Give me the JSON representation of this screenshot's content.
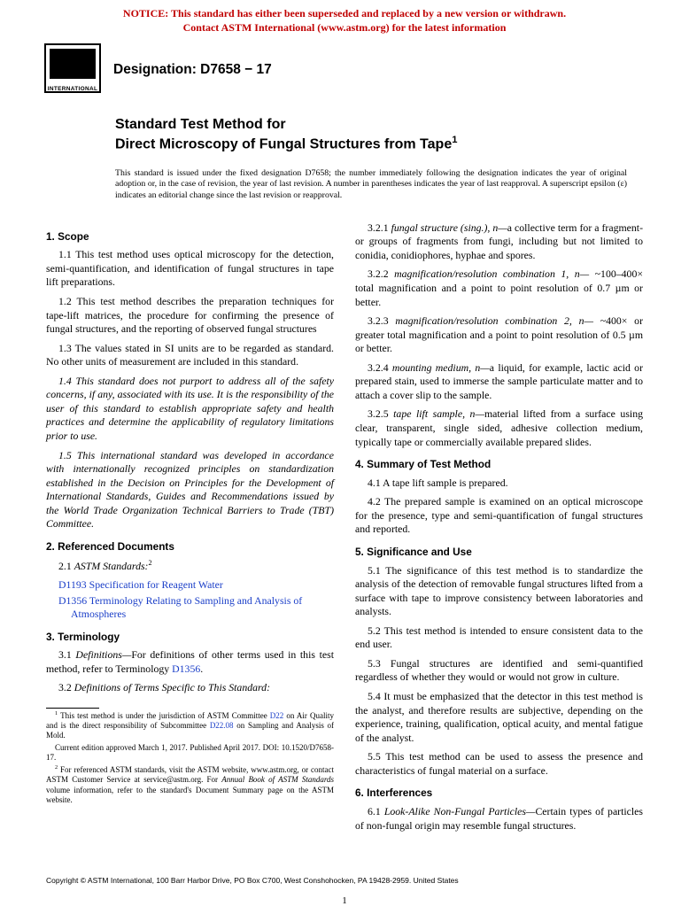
{
  "notice": {
    "line1": "NOTICE: This standard has either been superseded and replaced by a new version or withdrawn.",
    "line2": "Contact ASTM International (www.astm.org) for the latest information",
    "color": "#c00000"
  },
  "logo": {
    "label": "INTERNATIONAL"
  },
  "designation": {
    "prefix": "Designation: ",
    "code": "D7658 − 17"
  },
  "title": {
    "line1": "Standard Test Method for",
    "line2": "Direct Microscopy of Fungal Structures from Tape",
    "sup": "1"
  },
  "issuance": "This standard is issued under the fixed designation D7658; the number immediately following the designation indicates the year of original adoption or, in the case of revision, the year of last revision. A number in parentheses indicates the year of last reapproval. A superscript epsilon (ε) indicates an editorial change since the last revision or reapproval.",
  "s1": {
    "head": "1. Scope",
    "p1": "1.1 This test method uses optical microscopy for the detection, semi-quantification, and identification of fungal structures in tape lift preparations.",
    "p2": "1.2 This test method describes the preparation techniques for tape-lift matrices, the procedure for confirming the presence of fungal structures, and the reporting of observed fungal structures",
    "p3": "1.3 The values stated in SI units are to be regarded as standard. No other units of measurement are included in this standard.",
    "p4": "1.4 This standard does not purport to address all of the safety concerns, if any, associated with its use. It is the responsibility of the user of this standard to establish appropriate safety and health practices and determine the applicability of regulatory limitations prior to use.",
    "p5": "1.5 This international standard was developed in accordance with internationally recognized principles on standardization established in the Decision on Principles for the Development of International Standards, Guides and Recommendations issued by the World Trade Organization Technical Barriers to Trade (TBT) Committee."
  },
  "s2": {
    "head": "2. Referenced Documents",
    "p1_a": "2.1 ",
    "p1_b": "ASTM Standards:",
    "p1_sup": "2",
    "r1_code": "D1193",
    "r1_text": " Specification for Reagent Water",
    "r2_code": "D1356",
    "r2_text": " Terminology Relating to Sampling and Analysis of Atmospheres"
  },
  "s3": {
    "head": "3. Terminology",
    "p1_a": "3.1 ",
    "p1_b": "Definitions—",
    "p1_c": "For definitions of other terms used in this test method, refer to Terminology ",
    "p1_link": "D1356",
    "p1_d": ".",
    "p2_a": "3.2 ",
    "p2_b": "Definitions of Terms Specific to This Standard:",
    "d1_a": "3.2.1 ",
    "d1_b": "fungal structure (sing.), n—",
    "d1_c": "a collective term for a fragment- or groups of fragments from fungi, including but not limited to conidia, conidiophores, hyphae and spores.",
    "d2_a": "3.2.2 ",
    "d2_b": "magnification/resolution combination 1, n—",
    "d2_c": " ~100–400× total magnification and a point to point resolution of 0.7 µm or better.",
    "d3_a": "3.2.3 ",
    "d3_b": "magnification/resolution combination 2, n—",
    "d3_c": " ~400× or greater total magnification and a point to point resolution of 0.5 µm or better.",
    "d4_a": "3.2.4 ",
    "d4_b": "mounting medium, n—",
    "d4_c": "a liquid, for example, lactic acid or prepared stain, used to immerse the sample particulate matter and to attach a cover slip to the sample.",
    "d5_a": "3.2.5 ",
    "d5_b": "tape lift sample, n—",
    "d5_c": "material lifted from a surface using clear, transparent, single sided, adhesive collection medium, typically tape or commercially available prepared slides."
  },
  "s4": {
    "head": "4. Summary of Test Method",
    "p1": "4.1 A tape lift sample is prepared.",
    "p2": "4.2 The prepared sample is examined on an optical microscope for the presence, type and semi-quantification of fungal structures and reported."
  },
  "s5": {
    "head": "5. Significance and Use",
    "p1": "5.1 The significance of this test method is to standardize the analysis of the detection of removable fungal structures lifted from a surface with tape to improve consistency between laboratories and analysts.",
    "p2": "5.2 This test method is intended to ensure consistent data to the end user.",
    "p3": "5.3 Fungal structures are identified and semi-quantified regardless of whether they would or would not grow in culture.",
    "p4": "5.4 It must be emphasized that the detector in this test method is the analyst, and therefore results are subjective, depending on the experience, training, qualification, optical acuity, and mental fatigue of the analyst.",
    "p5": "5.5 This test method can be used to assess the presence and characteristics of fungal material on a surface."
  },
  "s6": {
    "head": "6. Interferences",
    "p1_a": "6.1 ",
    "p1_b": "Look-Alike Non-Fungal Particles—",
    "p1_c": "Certain types of particles of non-fungal origin may resemble fungal structures."
  },
  "footnotes": {
    "f1_a": " This test method is under the jurisdiction of ASTM Committee ",
    "f1_link1": "D22",
    "f1_b": " on Air Quality and is the direct responsibility of Subcommittee ",
    "f1_link2": "D22.08",
    "f1_c": " on Sampling and Analysis of Mold.",
    "f1_d": "Current edition approved March 1, 2017. Published April 2017. DOI: 10.1520/D7658-17.",
    "f2_a": " For referenced ASTM standards, visit the ASTM website, www.astm.org, or contact ASTM Customer Service at service@astm.org. For ",
    "f2_b": "Annual Book of ASTM Standards",
    "f2_c": " volume information, refer to the standard's Document Summary page on the ASTM website."
  },
  "copyright": "Copyright © ASTM International, 100 Barr Harbor Drive, PO Box C700, West Conshohocken, PA 19428-2959. United States",
  "pagenum": "1",
  "colors": {
    "link": "#1a3ec8",
    "notice": "#c00000"
  }
}
